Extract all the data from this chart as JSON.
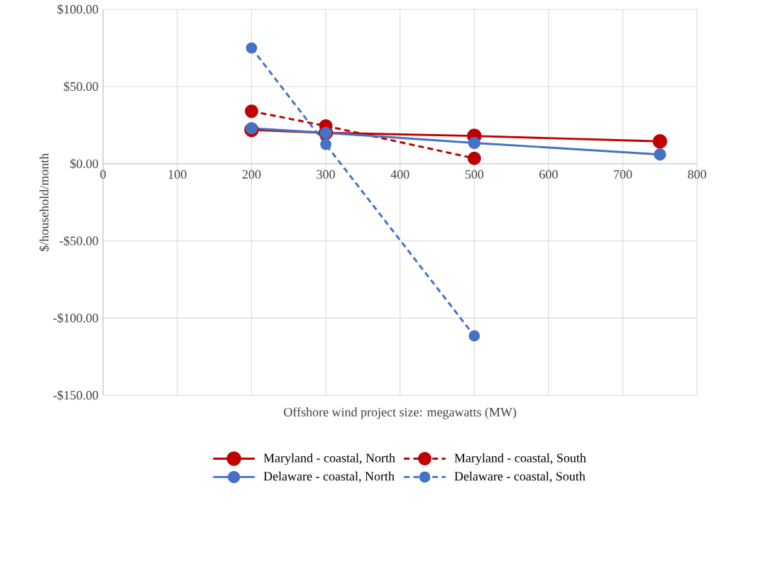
{
  "chart_data": {
    "type": "line",
    "xlabel": "Offshore wind project size: megawatts (MW)",
    "ylabel": "$/household/month",
    "x": [
      200,
      300,
      500,
      750
    ],
    "series": [
      {
        "name": "Maryland - coastal, North",
        "color": "#c00000",
        "line_style": "solid",
        "values": [
          22,
          20,
          18,
          14.5
        ]
      },
      {
        "name": "Maryland - coastal, South",
        "color": "#c00000",
        "line_style": "dashed",
        "values": [
          34,
          24.5,
          3.5,
          null
        ]
      },
      {
        "name": "Delaware - coastal, North",
        "color": "#4472c4",
        "line_style": "solid",
        "values": [
          23,
          20,
          13.5,
          6
        ]
      },
      {
        "name": "Delaware - coastal, South",
        "color": "#4472c4",
        "line_style": "dashed",
        "values": [
          75,
          12.5,
          -111.5,
          null
        ]
      }
    ],
    "xlim": [
      0,
      800
    ],
    "xticks": [
      0,
      100,
      200,
      300,
      400,
      500,
      600,
      700,
      800
    ],
    "ylim": [
      -150,
      100
    ],
    "yticks": [
      {
        "value": -150,
        "label": "-$150.00"
      },
      {
        "value": -100,
        "label": "-$100.00"
      },
      {
        "value": -50,
        "label": "-$50.00"
      },
      {
        "value": 0,
        "label": "$0.00"
      },
      {
        "value": 50,
        "label": "$50.00"
      },
      {
        "value": 100,
        "label": "$100.00"
      }
    ],
    "grid": true,
    "legend": "bottom",
    "marker": "circle"
  }
}
